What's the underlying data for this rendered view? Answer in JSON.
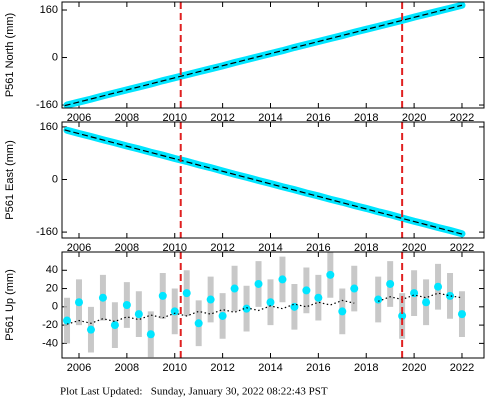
{
  "chart_data": [
    {
      "type": "scatter",
      "y_label": "P561 North (mm)",
      "x": [
        2005.5,
        2006,
        2006.5,
        2007,
        2007.5,
        2008,
        2008.5,
        2009,
        2009.5,
        2010,
        2010.5,
        2011,
        2011.5,
        2012,
        2012.5,
        2013,
        2013.5,
        2014,
        2014.5,
        2015,
        2015.5,
        2016,
        2016.5,
        2017,
        2017.5,
        2018,
        2018.5,
        2019,
        2019.5,
        2020,
        2020.5,
        2021,
        2021.5,
        2022
      ],
      "values": [
        -160,
        -150,
        -140,
        -129,
        -119,
        -109,
        -99,
        -89,
        -78,
        -68,
        -58,
        -48,
        -38,
        -28,
        -17,
        -7,
        3,
        13,
        23,
        34,
        44,
        54,
        64,
        74,
        85,
        95,
        105,
        115,
        125,
        136,
        146,
        156,
        166,
        176
      ],
      "color": "#00e5ff",
      "model_x": [
        2005.4,
        2022.0
      ],
      "model": [
        -162,
        176
      ],
      "model_color": "#000000",
      "events": [
        2010.25,
        2019.5
      ],
      "event_color": "#e02020",
      "xlim": [
        2005.29,
        2022.92
      ],
      "ylim": [
        -170,
        187
      ],
      "xticks": [
        2006,
        2008,
        2010,
        2012,
        2014,
        2016,
        2018,
        2020,
        2022
      ],
      "yticks": [
        -160,
        0,
        160
      ]
    },
    {
      "type": "scatter",
      "y_label": "P561 East (mm)",
      "x": [
        2005.5,
        2006,
        2006.5,
        2007,
        2007.5,
        2008,
        2008.5,
        2009,
        2009.5,
        2010,
        2010.5,
        2011,
        2011.5,
        2012,
        2012.5,
        2013,
        2013.5,
        2014,
        2014.5,
        2015,
        2015.5,
        2016,
        2016.5,
        2017,
        2017.5,
        2018,
        2018.5,
        2019,
        2019.5,
        2020,
        2020.5,
        2021,
        2021.5,
        2022
      ],
      "values": [
        150,
        140,
        131,
        121,
        112,
        102,
        93,
        83,
        74,
        64,
        55,
        45,
        36,
        26,
        16,
        7,
        -3,
        -12,
        -22,
        -31,
        -41,
        -50,
        -60,
        -69,
        -79,
        -88,
        -98,
        -107,
        -117,
        -127,
        -136,
        -146,
        -155,
        -165
      ],
      "color": "#00e5ff",
      "model_x": [
        2005.4,
        2022.0
      ],
      "model": [
        151,
        -166
      ],
      "model_color": "#000000",
      "events": [
        2010.25,
        2019.5
      ],
      "event_color": "#e02020",
      "xlim": [
        2005.29,
        2022.92
      ],
      "ylim": [
        -178,
        175
      ],
      "xticks": [
        2006,
        2008,
        2010,
        2012,
        2014,
        2016,
        2018,
        2020,
        2022
      ],
      "yticks": [
        -160,
        0,
        160
      ]
    },
    {
      "type": "errorscatter",
      "y_label": "P561 Up (mm)",
      "x": [
        2005.5,
        2006,
        2006.5,
        2007,
        2007.5,
        2008,
        2008.5,
        2009,
        2009.5,
        2010,
        2010.5,
        2011,
        2011.5,
        2012,
        2012.5,
        2013,
        2013.5,
        2014,
        2014.5,
        2015,
        2015.5,
        2016,
        2016.5,
        2017,
        2017.5,
        2018,
        2018.5,
        2019,
        2019.5,
        2020,
        2020.5,
        2021,
        2021.5,
        2022
      ],
      "values": [
        -15,
        5,
        -25,
        10,
        -20,
        2,
        -8,
        -30,
        12,
        -5,
        15,
        -18,
        8,
        -10,
        20,
        -2,
        25,
        5,
        30,
        0,
        18,
        10,
        35,
        -5,
        20,
        null,
        8,
        25,
        -10,
        15,
        5,
        22,
        12,
        -8
      ],
      "errors": [
        25,
        25,
        25,
        25,
        25,
        25,
        25,
        25,
        25,
        25,
        25,
        25,
        25,
        25,
        25,
        25,
        25,
        25,
        25,
        25,
        25,
        25,
        25,
        25,
        25,
        null,
        25,
        25,
        25,
        25,
        25,
        25,
        25,
        25
      ],
      "color": "#00e5ff",
      "error_color": "#bbbbbb",
      "model_x": [
        2005.5,
        2006,
        2006.5,
        2007,
        2007.5,
        2008,
        2008.5,
        2009,
        2009.5,
        2010,
        2010.5,
        2011,
        2011.5,
        2012,
        2012.5,
        2013,
        2013.5,
        2014,
        2014.5,
        2015,
        2015.5,
        2016,
        2016.5,
        2017,
        2017.5,
        2018,
        2018.5,
        2019,
        2019.5,
        2020,
        2020.5,
        2021,
        2021.5,
        2022
      ],
      "model": [
        -19,
        -15,
        -18,
        -13,
        -16,
        -11,
        -14,
        -9,
        -12,
        -7,
        -10,
        -5,
        -8,
        -3,
        -6,
        -1,
        -4,
        1,
        -2,
        3,
        0,
        5,
        2,
        7,
        4,
        null,
        6,
        11,
        8,
        13,
        10,
        15,
        12,
        10
      ],
      "model_color": "#000000",
      "events": [
        2010.25,
        2019.5
      ],
      "event_color": "#e02020",
      "xlim": [
        2005.29,
        2022.92
      ],
      "ylim": [
        -56,
        60
      ],
      "xticks": [
        2006,
        2008,
        2010,
        2012,
        2014,
        2016,
        2018,
        2020,
        2022
      ],
      "yticks": [
        -40,
        -20,
        0,
        20,
        40
      ]
    }
  ],
  "footer": "Plot Last Updated:   Sunday, January 30, 2022 08:22:43 PST"
}
